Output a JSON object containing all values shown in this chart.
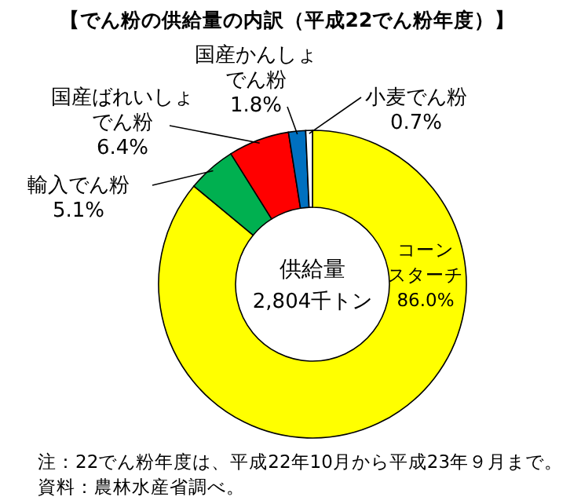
{
  "chart_data": {
    "type": "donut",
    "title": "【でん粉の供給量の内訳（平成22でん粉年度）】",
    "categories": [
      "コーンスターチ",
      "輸入でん粉",
      "国産ばれいしょでん粉",
      "国産かんしょでん粉",
      "小麦でん粉"
    ],
    "values": [
      86.0,
      5.1,
      6.4,
      1.8,
      0.7
    ],
    "colors": [
      "#ffff00",
      "#00b050",
      "#ff0000",
      "#0070c0",
      "#ffffff"
    ],
    "value_labels": [
      "86.0%",
      "5.1%",
      "6.4%",
      "1.8%",
      "0.7%"
    ],
    "annotations": [
      "供給量",
      "2,804千トン",
      "注：22でん粉年度は、平成22年10月から平成23年９月まで。",
      "資料：農林水産省調べ。"
    ]
  }
}
